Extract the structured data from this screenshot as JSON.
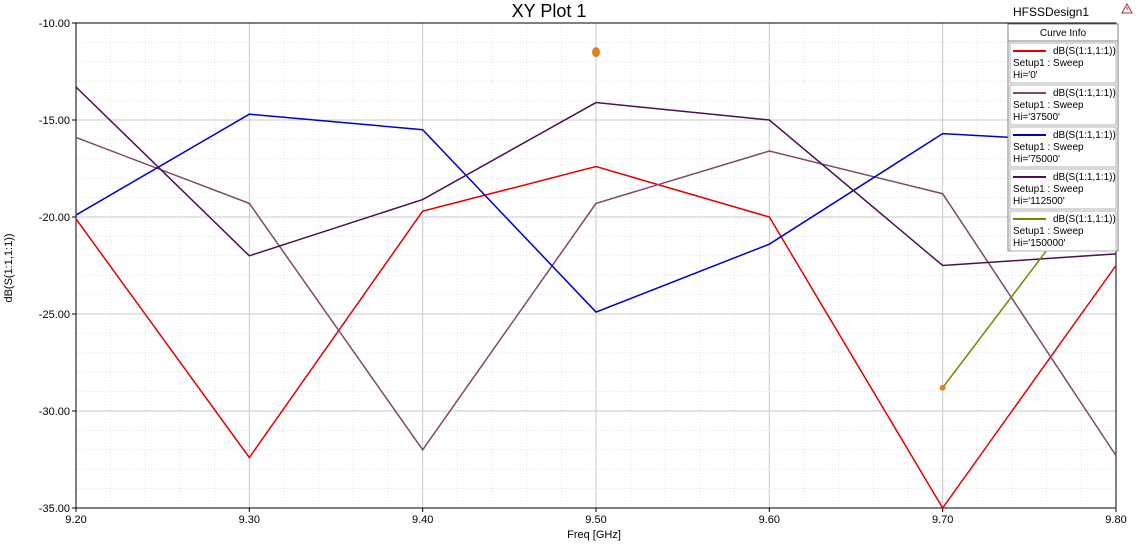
{
  "header": {
    "title": "XY Plot 1",
    "design_name": "HFSSDesign1"
  },
  "legend": {
    "title": "Curve Info"
  },
  "chart_data": {
    "type": "line",
    "title": "XY Plot 1",
    "xlabel": "Freq [GHz]",
    "ylabel": "dB(S(1:1,1:1))",
    "xlim": [
      9.2,
      9.8
    ],
    "ylim": [
      -35,
      -10
    ],
    "xticks": [
      "9.20",
      "9.30",
      "9.40",
      "9.50",
      "9.60",
      "9.70",
      "9.80"
    ],
    "yticks": [
      "-10.00",
      "-15.00",
      "-20.00",
      "-25.00",
      "-30.00",
      "-35.00"
    ],
    "grid": true,
    "legend_position": "top-right",
    "series": [
      {
        "name": "dB(S(1:1,1:1))",
        "line2": "Setup1 : Sweep",
        "line3": "Hi='0'",
        "color": "#e00000",
        "x": [
          9.2,
          9.3,
          9.4,
          9.5,
          9.6,
          9.7,
          9.8
        ],
        "y": [
          -20.1,
          -32.4,
          -19.7,
          -17.4,
          -20.0,
          -35.0,
          -22.5
        ]
      },
      {
        "name": "dB(S(1:1,1:1))",
        "line2": "Setup1 : Sweep",
        "line3": "Hi='37500'",
        "color": "#7b4a6e",
        "x": [
          9.2,
          9.3,
          9.4,
          9.5,
          9.6,
          9.7,
          9.8
        ],
        "y": [
          -15.9,
          -19.3,
          -32.0,
          -19.3,
          -16.6,
          -18.8,
          -32.3
        ]
      },
      {
        "name": "dB(S(1:1,1:1))",
        "line2": "Setup1 : Sweep",
        "line3": "Hi='75000'",
        "color": "#0000c8",
        "x": [
          9.2,
          9.3,
          9.4,
          9.5,
          9.6,
          9.7,
          9.8
        ],
        "y": [
          -19.9,
          -14.7,
          -15.5,
          -24.9,
          -21.4,
          -15.7,
          -16.2
        ]
      },
      {
        "name": "dB(S(1:1,1:1))",
        "line2": "Setup1 : Sweep",
        "line3": "Hi='112500'",
        "color": "#4a1050",
        "x": [
          9.2,
          9.3,
          9.4,
          9.5,
          9.6,
          9.7,
          9.8
        ],
        "y": [
          -13.3,
          -22.0,
          -19.1,
          -14.1,
          -15.0,
          -22.5,
          -21.9
        ]
      },
      {
        "name": "dB(S(1:1,1:1))",
        "line2": "Setup1 : Sweep",
        "line3": "Hi='150000'",
        "color": "#808000",
        "x": [
          9.5,
          9.7,
          9.8
        ],
        "y": [
          -11.5,
          -28.8,
          -17.0
        ]
      }
    ]
  }
}
